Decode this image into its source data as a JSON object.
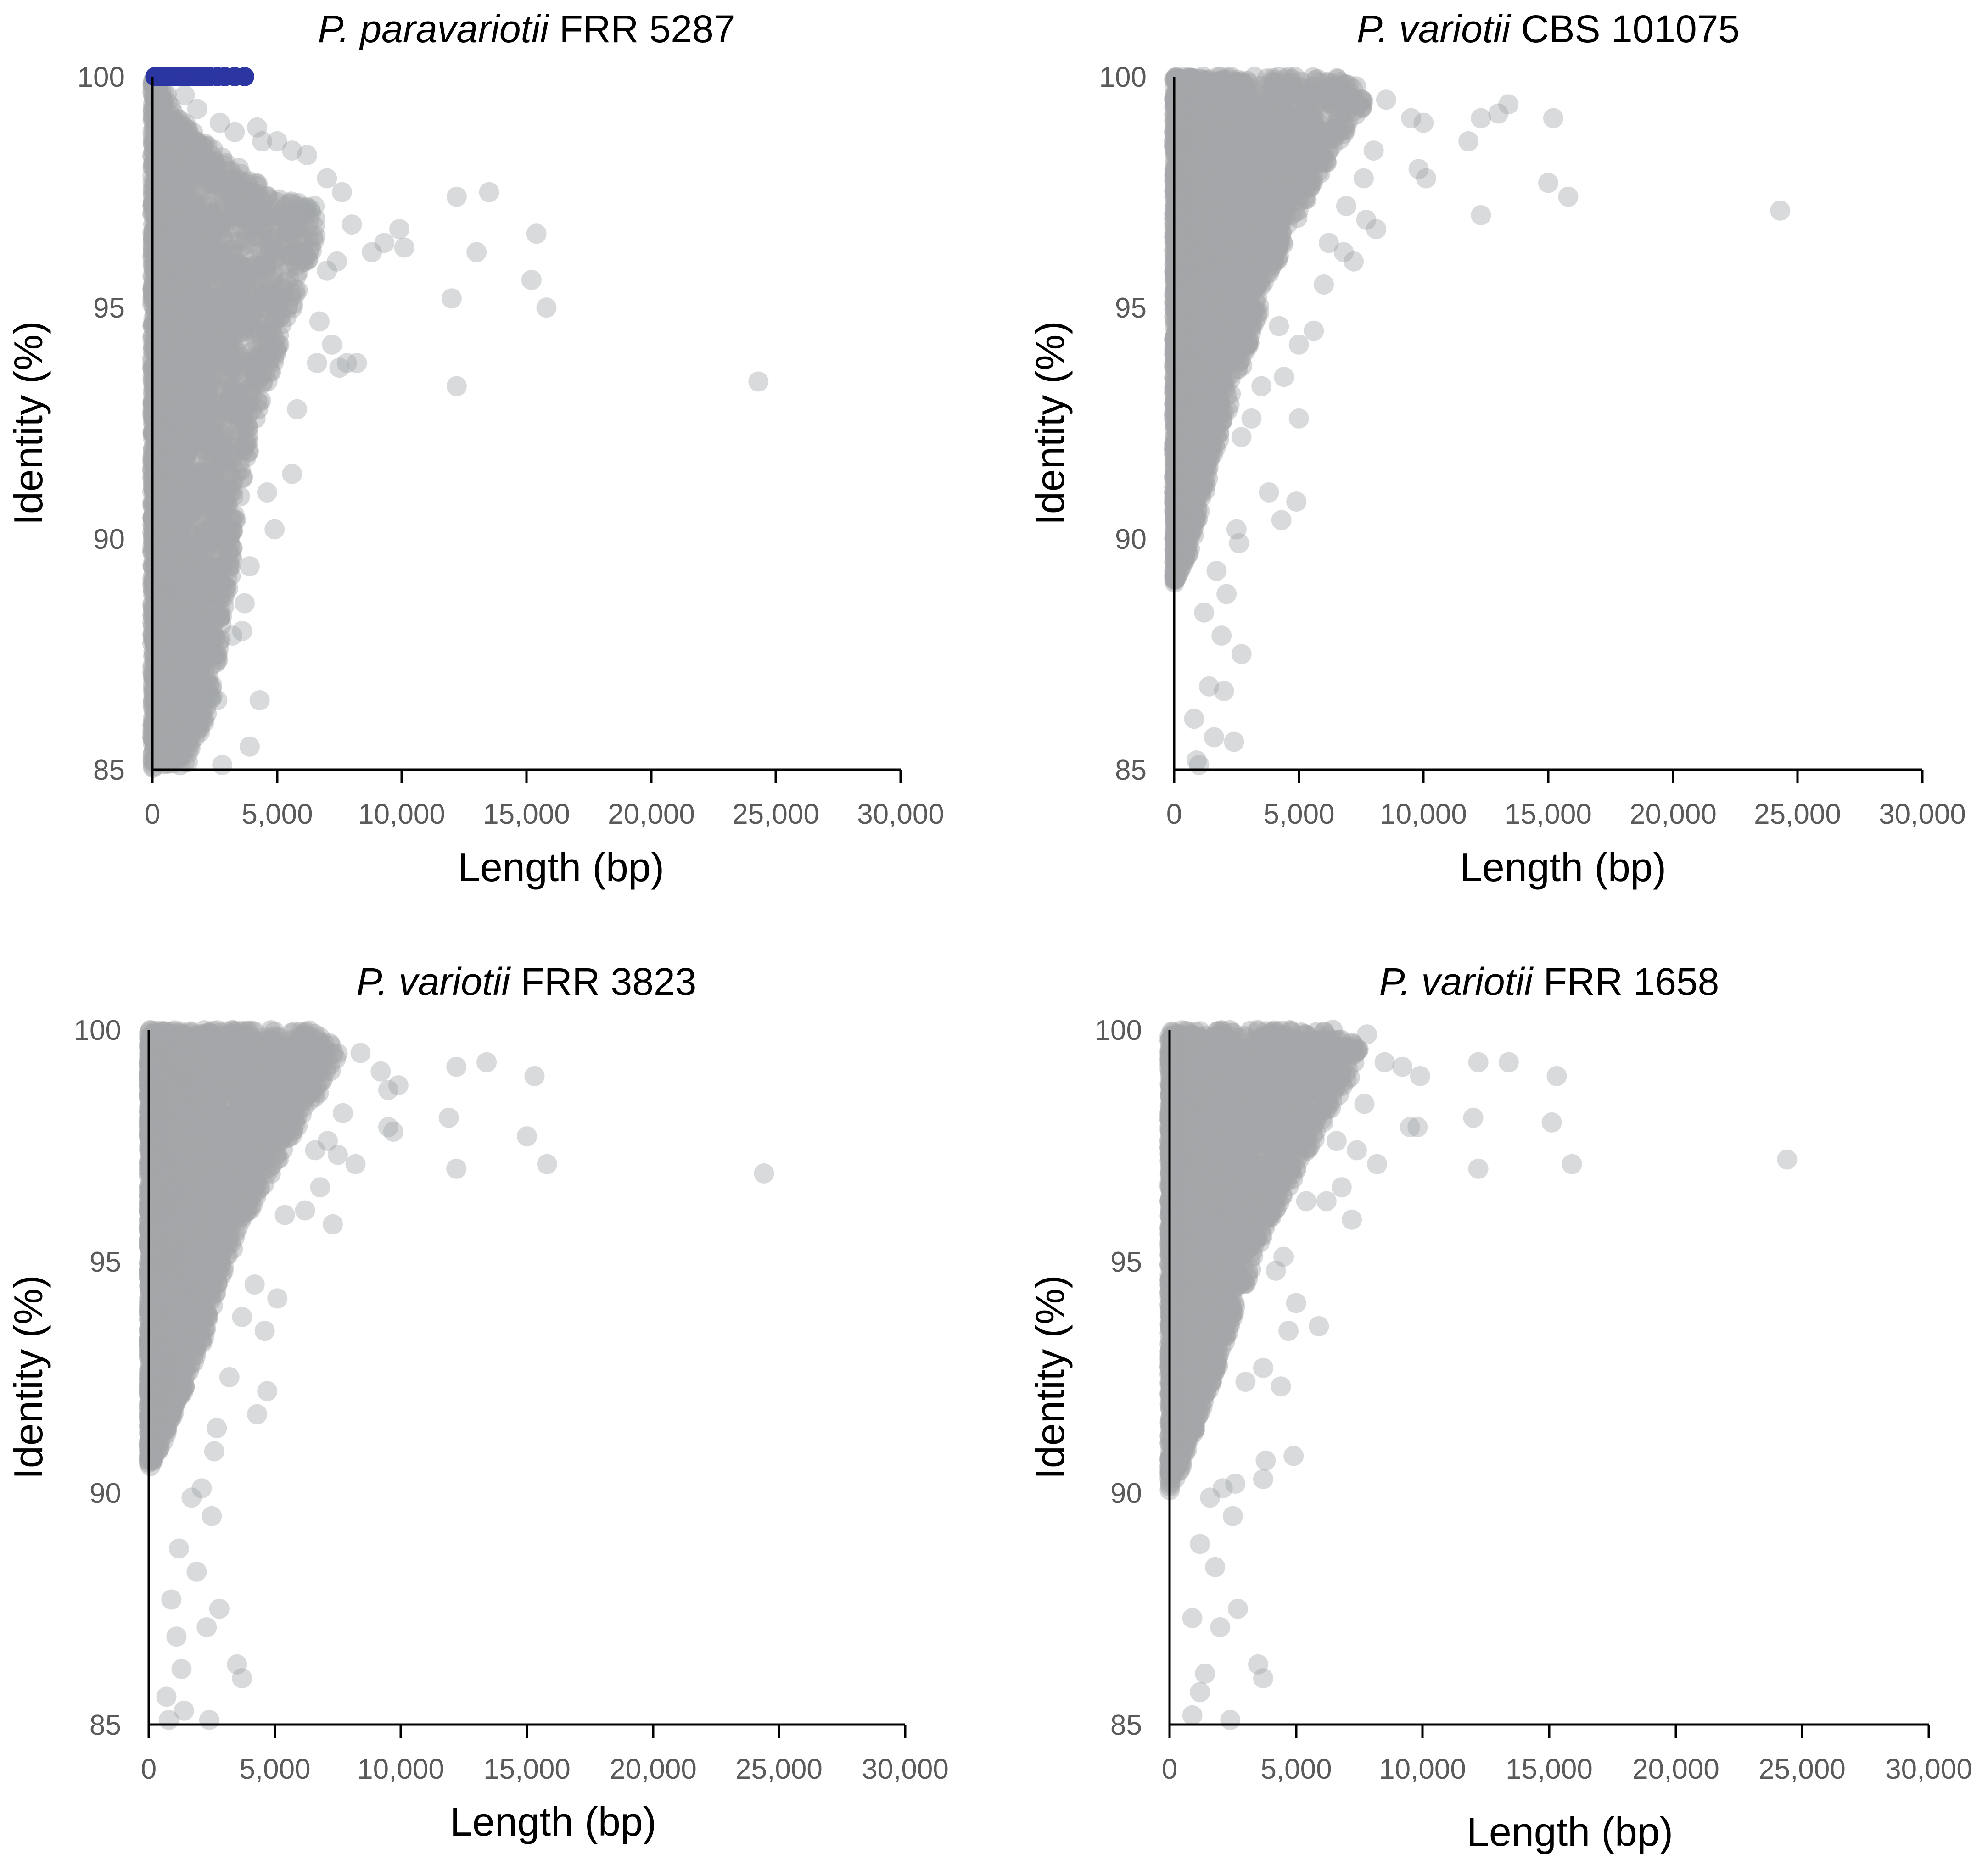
{
  "colors": {
    "background": "#ffffff",
    "point": "#a3a6a9",
    "highlight": "#2b36a3",
    "axis": "#000000",
    "tick_text": "#5a5a5a"
  },
  "chart_data": [
    {
      "type": "scatter",
      "title_species": "P. paravariotii",
      "title_strain": "FRR 5287",
      "xlabel": "Length (bp)",
      "ylabel": "Identity (%)",
      "xlim": [
        0,
        30000
      ],
      "ylim": [
        85,
        100
      ],
      "xticks": [
        0,
        5000,
        10000,
        15000,
        20000,
        25000,
        30000
      ],
      "xtick_labels": [
        "0",
        "5,000",
        "10,000",
        "15,000",
        "20,000",
        "25,000",
        "30,000"
      ],
      "yticks": [
        85,
        90,
        95,
        100
      ],
      "ytick_labels": [
        "85",
        "90",
        "95",
        "100"
      ],
      "density": {
        "envelope": [
          [
            0,
            100
          ],
          [
            0,
            85
          ],
          [
            1400,
            85
          ],
          [
            2400,
            86.5
          ],
          [
            3100,
            89
          ],
          [
            3700,
            91.5
          ],
          [
            4400,
            93
          ],
          [
            5200,
            94.3
          ],
          [
            6000,
            95.6
          ],
          [
            6500,
            96.3
          ],
          [
            6800,
            97
          ],
          [
            5800,
            97.3
          ],
          [
            4500,
            97.6
          ],
          [
            3300,
            98.1
          ],
          [
            2000,
            98.6
          ],
          [
            1200,
            99.1
          ],
          [
            600,
            99.6
          ]
        ],
        "count": 3200
      },
      "outliers": [
        [
          12200,
          97.4
        ],
        [
          13500,
          97.5
        ],
        [
          9900,
          96.7
        ],
        [
          10100,
          96.3
        ],
        [
          9300,
          96.4
        ],
        [
          8800,
          96.2
        ],
        [
          13000,
          96.2
        ],
        [
          15400,
          96.6
        ],
        [
          15200,
          95.6
        ],
        [
          15800,
          95
        ],
        [
          12000,
          95.2
        ],
        [
          12200,
          93.3
        ],
        [
          24300,
          93.4
        ],
        [
          7800,
          93.8
        ],
        [
          8200,
          93.8
        ],
        [
          7500,
          93.7
        ],
        [
          6600,
          93.8
        ],
        [
          5800,
          92.8
        ],
        [
          5600,
          91.4
        ],
        [
          4900,
          90.2
        ],
        [
          4300,
          86.5
        ],
        [
          3700,
          88.6
        ],
        [
          3600,
          88
        ],
        [
          3900,
          85.5
        ],
        [
          2800,
          85.1
        ],
        [
          2600,
          86.5
        ],
        [
          7400,
          96
        ],
        [
          7000,
          95.8
        ],
        [
          8000,
          96.8
        ],
        [
          7600,
          97.5
        ],
        [
          7000,
          97.8
        ],
        [
          6500,
          97.2
        ],
        [
          6200,
          98.3
        ],
        [
          5600,
          98.4
        ],
        [
          5000,
          98.6
        ],
        [
          4200,
          98.9
        ],
        [
          4400,
          98.6
        ],
        [
          3300,
          98.8
        ],
        [
          2700,
          99
        ],
        [
          1800,
          99.3
        ],
        [
          1300,
          99.6
        ],
        [
          4600,
          91
        ],
        [
          3900,
          89.4
        ],
        [
          3200,
          87.9
        ],
        [
          7200,
          94.2
        ],
        [
          6700,
          94.7
        ]
      ],
      "highlight_points": [
        [
          100,
          100
        ],
        [
          300,
          100
        ],
        [
          500,
          100
        ],
        [
          700,
          100
        ],
        [
          900,
          100
        ],
        [
          1100,
          100
        ],
        [
          1300,
          100
        ],
        [
          1500,
          100
        ],
        [
          1700,
          100
        ],
        [
          1900,
          100
        ],
        [
          2100,
          100
        ],
        [
          2300,
          100
        ],
        [
          2600,
          100
        ],
        [
          2900,
          100
        ],
        [
          3300,
          100
        ],
        [
          3700,
          100
        ]
      ]
    },
    {
      "type": "scatter",
      "title_species": "P. variotii",
      "title_strain": "CBS 101075",
      "xlabel": "Length (bp)",
      "ylabel": "Identity (%)",
      "xlim": [
        0,
        30000
      ],
      "ylim": [
        85,
        100
      ],
      "xticks": [
        0,
        5000,
        10000,
        15000,
        20000,
        25000,
        30000
      ],
      "xtick_labels": [
        "0",
        "5,000",
        "10,000",
        "15,000",
        "20,000",
        "25,000",
        "30,000"
      ],
      "yticks": [
        85,
        90,
        95,
        100
      ],
      "ytick_labels": [
        "85",
        "90",
        "95",
        "100"
      ],
      "density": {
        "envelope": [
          [
            0,
            100
          ],
          [
            0,
            89
          ],
          [
            500,
            89.5
          ],
          [
            1000,
            90.5
          ],
          [
            1600,
            91.8
          ],
          [
            2300,
            93
          ],
          [
            3000,
            94.2
          ],
          [
            3700,
            95.4
          ],
          [
            4500,
            96.5
          ],
          [
            5500,
            97.5
          ],
          [
            6600,
            98.6
          ],
          [
            7300,
            99.1
          ],
          [
            7700,
            99.5
          ],
          [
            7000,
            100
          ]
        ],
        "count": 3200
      },
      "outliers": [
        [
          8500,
          99.5
        ],
        [
          9500,
          99.1
        ],
        [
          10000,
          99
        ],
        [
          11800,
          98.6
        ],
        [
          12300,
          99.1
        ],
        [
          13000,
          99.2
        ],
        [
          13400,
          99.4
        ],
        [
          15200,
          99.1
        ],
        [
          12300,
          97
        ],
        [
          15000,
          97.7
        ],
        [
          15800,
          97.4
        ],
        [
          24300,
          97.1
        ],
        [
          9800,
          98
        ],
        [
          10100,
          97.8
        ],
        [
          8100,
          96.7
        ],
        [
          7700,
          96.9
        ],
        [
          7200,
          96
        ],
        [
          6800,
          96.2
        ],
        [
          6000,
          95.5
        ],
        [
          5000,
          94.2
        ],
        [
          5600,
          94.5
        ],
        [
          4400,
          93.5
        ],
        [
          4200,
          94.6
        ],
        [
          3500,
          93.3
        ],
        [
          5000,
          92.6
        ],
        [
          3800,
          91
        ],
        [
          4900,
          90.8
        ],
        [
          4300,
          90.4
        ],
        [
          2500,
          90.2
        ],
        [
          2600,
          89.9
        ],
        [
          2700,
          87.5
        ],
        [
          2400,
          85.6
        ],
        [
          2000,
          86.7
        ],
        [
          1400,
          86.8
        ],
        [
          900,
          85.2
        ],
        [
          1000,
          85.1
        ],
        [
          800,
          86.1
        ],
        [
          1600,
          85.7
        ],
        [
          1900,
          87.9
        ],
        [
          1200,
          88.4
        ],
        [
          2100,
          88.8
        ],
        [
          1700,
          89.3
        ],
        [
          3100,
          92.6
        ],
        [
          2700,
          92.2
        ],
        [
          6200,
          96.4
        ],
        [
          8000,
          98.4
        ],
        [
          7600,
          97.8
        ],
        [
          6900,
          97.2
        ]
      ],
      "highlight_points": []
    },
    {
      "type": "scatter",
      "title_species": "P. variotii",
      "title_strain": "FRR 3823",
      "xlabel": "Length (bp)",
      "ylabel": "Identity (%)",
      "xlim": [
        0,
        30000
      ],
      "ylim": [
        85,
        100
      ],
      "xticks": [
        0,
        5000,
        10000,
        15000,
        20000,
        25000,
        30000
      ],
      "xtick_labels": [
        "0",
        "5,000",
        "10,000",
        "15,000",
        "20,000",
        "25,000",
        "30,000"
      ],
      "yticks": [
        85,
        90,
        95,
        100
      ],
      "ytick_labels": [
        "85",
        "90",
        "95",
        "100"
      ],
      "density": {
        "envelope": [
          [
            0,
            100
          ],
          [
            0,
            90.5
          ],
          [
            500,
            91
          ],
          [
            1100,
            91.8
          ],
          [
            1700,
            92.6
          ],
          [
            2300,
            93.5
          ],
          [
            2900,
            94.6
          ],
          [
            3500,
            95.5
          ],
          [
            4300,
            96.4
          ],
          [
            5300,
            97.3
          ],
          [
            6400,
            98.3
          ],
          [
            7200,
            99
          ],
          [
            7600,
            99.6
          ],
          [
            6500,
            100
          ]
        ],
        "count": 3200
      },
      "outliers": [
        [
          8400,
          99.5
        ],
        [
          9200,
          99.1
        ],
        [
          9900,
          98.8
        ],
        [
          9500,
          98.7
        ],
        [
          12200,
          99.2
        ],
        [
          13400,
          99.3
        ],
        [
          15300,
          99
        ],
        [
          11900,
          98.1
        ],
        [
          12200,
          97
        ],
        [
          15000,
          97.7
        ],
        [
          15800,
          97.1
        ],
        [
          24400,
          96.9
        ],
        [
          9500,
          97.9
        ],
        [
          9700,
          97.8
        ],
        [
          8200,
          97.1
        ],
        [
          7500,
          97.3
        ],
        [
          7300,
          95.8
        ],
        [
          6800,
          96.6
        ],
        [
          6200,
          96.1
        ],
        [
          5400,
          96
        ],
        [
          5100,
          94.2
        ],
        [
          4600,
          93.5
        ],
        [
          4200,
          94.5
        ],
        [
          3700,
          93.8
        ],
        [
          4700,
          92.2
        ],
        [
          4300,
          91.7
        ],
        [
          3200,
          92.5
        ],
        [
          2700,
          91.4
        ],
        [
          2600,
          90.9
        ],
        [
          2500,
          89.5
        ],
        [
          2800,
          87.5
        ],
        [
          2300,
          87.1
        ],
        [
          3500,
          86.3
        ],
        [
          3700,
          86
        ],
        [
          2400,
          85.1
        ],
        [
          1400,
          85.3
        ],
        [
          800,
          85.1
        ],
        [
          700,
          85.6
        ],
        [
          1300,
          86.2
        ],
        [
          1900,
          88.3
        ],
        [
          1200,
          88.8
        ],
        [
          1700,
          89.9
        ],
        [
          2100,
          90.1
        ],
        [
          900,
          87.7
        ],
        [
          1100,
          86.9
        ],
        [
          6600,
          97.4
        ],
        [
          7700,
          98.2
        ],
        [
          7100,
          97.6
        ]
      ],
      "highlight_points": []
    },
    {
      "type": "scatter",
      "title_species": "P. variotii",
      "title_strain": "FRR 1658",
      "xlabel": "Length (bp)",
      "ylabel": "Identity (%)",
      "xlim": [
        0,
        30000
      ],
      "ylim": [
        85,
        100
      ],
      "xticks": [
        0,
        5000,
        10000,
        15000,
        20000,
        25000,
        30000
      ],
      "xtick_labels": [
        "0",
        "5,000",
        "10,000",
        "15,000",
        "20,000",
        "25,000",
        "30,000"
      ],
      "yticks": [
        85,
        90,
        95,
        100
      ],
      "ytick_labels": [
        "85",
        "90",
        "95",
        "100"
      ],
      "density": {
        "envelope": [
          [
            0,
            100
          ],
          [
            0,
            90
          ],
          [
            500,
            90.6
          ],
          [
            1100,
            91.5
          ],
          [
            1700,
            92.4
          ],
          [
            2300,
            93.3
          ],
          [
            2900,
            94.3
          ],
          [
            3500,
            95.2
          ],
          [
            4300,
            96.2
          ],
          [
            5300,
            97.2
          ],
          [
            6400,
            98.3
          ],
          [
            7200,
            99
          ],
          [
            7600,
            99.6
          ],
          [
            6500,
            100
          ]
        ],
        "count": 3200
      },
      "outliers": [
        [
          7800,
          99.9
        ],
        [
          8500,
          99.3
        ],
        [
          9200,
          99.2
        ],
        [
          9900,
          99
        ],
        [
          12200,
          99.3
        ],
        [
          13400,
          99.3
        ],
        [
          15300,
          99
        ],
        [
          12000,
          98.1
        ],
        [
          12200,
          97
        ],
        [
          15100,
          98
        ],
        [
          15900,
          97.1
        ],
        [
          24400,
          97.2
        ],
        [
          9500,
          97.9
        ],
        [
          9800,
          97.9
        ],
        [
          8200,
          97.1
        ],
        [
          7400,
          97.4
        ],
        [
          7200,
          95.9
        ],
        [
          6800,
          96.6
        ],
        [
          6200,
          96.3
        ],
        [
          5400,
          96.3
        ],
        [
          4500,
          95.1
        ],
        [
          5000,
          94.1
        ],
        [
          4200,
          94.8
        ],
        [
          5900,
          93.6
        ],
        [
          4700,
          93.5
        ],
        [
          3700,
          92.7
        ],
        [
          4400,
          92.3
        ],
        [
          3000,
          92.4
        ],
        [
          4900,
          90.8
        ],
        [
          3800,
          90.7
        ],
        [
          3700,
          90.3
        ],
        [
          2600,
          90.2
        ],
        [
          2500,
          89.5
        ],
        [
          2700,
          87.5
        ],
        [
          2000,
          87.1
        ],
        [
          1400,
          86.1
        ],
        [
          3500,
          86.3
        ],
        [
          3700,
          86
        ],
        [
          2400,
          85.1
        ],
        [
          900,
          85.2
        ],
        [
          1200,
          85.7
        ],
        [
          1800,
          88.4
        ],
        [
          1200,
          88.9
        ],
        [
          1600,
          89.9
        ],
        [
          2100,
          90.1
        ],
        [
          900,
          87.3
        ],
        [
          6600,
          97.6
        ],
        [
          7700,
          98.4
        ]
      ],
      "highlight_points": []
    }
  ]
}
